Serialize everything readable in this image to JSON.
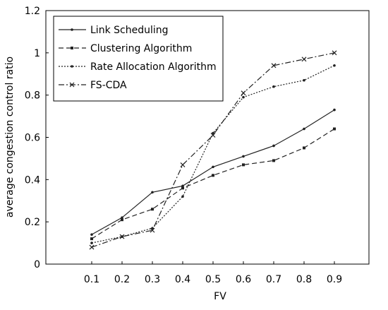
{
  "chart_data": {
    "type": "line",
    "title": "",
    "xlabel": "FV",
    "ylabel": "average congestion control ratio",
    "categories": [
      "0.1",
      "0.2",
      "0.3",
      "0.4",
      "0.5",
      "0.6",
      "0.7",
      "0.8",
      "0.9"
    ],
    "ylim": [
      0,
      1.2
    ],
    "yticks": [
      "0",
      "0.2",
      "0.4",
      "0.6",
      "0.8",
      "1",
      "1.2"
    ],
    "grid": false,
    "legend_position": "top-left",
    "series": [
      {
        "name": "Link Scheduling",
        "style": "solid",
        "marker": "dot",
        "values": [
          0.14,
          0.22,
          0.34,
          0.37,
          0.46,
          0.51,
          0.56,
          0.64,
          0.73
        ]
      },
      {
        "name": "Clustering Algorithm",
        "style": "dashed",
        "marker": "square",
        "values": [
          0.12,
          0.21,
          0.26,
          0.36,
          0.42,
          0.47,
          0.49,
          0.55,
          0.64
        ]
      },
      {
        "name": "Rate Allocation Algorithm",
        "style": "dotted",
        "marker": "dot",
        "values": [
          0.1,
          0.13,
          0.17,
          0.32,
          0.62,
          0.79,
          0.84,
          0.87,
          0.94
        ]
      },
      {
        "name": "FS-CDA",
        "style": "dashdot",
        "marker": "x",
        "values": [
          0.08,
          0.13,
          0.16,
          0.47,
          0.61,
          0.81,
          0.94,
          0.97,
          1.0
        ]
      }
    ]
  }
}
